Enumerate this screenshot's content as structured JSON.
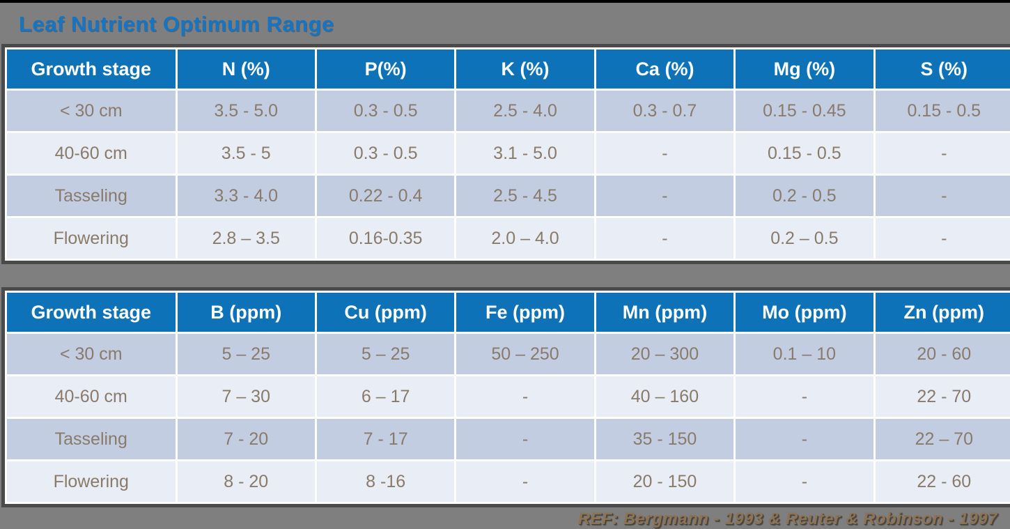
{
  "title": "Leaf Nutrient Optimum Range",
  "reference": "REF:  Bergmann - 1993 & Reuter & Robinson - 1997",
  "colors": {
    "background": "#7f7f7f",
    "title_text": "#1575c5",
    "header_bg": "#0d72b8",
    "header_text": "#ffffff",
    "row_dark": "#c2cde2",
    "row_light": "#e9edf5",
    "cell_text": "#8a7a6a",
    "table_outline": "#4a4a4a",
    "reference_text": "#8b7355"
  },
  "macro": {
    "headers": [
      "Growth stage",
      "N (%)",
      "P(%)",
      "K (%)",
      "Ca (%)",
      "Mg (%)",
      "S (%)"
    ],
    "rows": [
      [
        "< 30 cm",
        "3.5 - 5.0",
        "0.3 - 0.5",
        "2.5 - 4.0",
        "0.3 - 0.7",
        "0.15 - 0.45",
        "0.15 - 0.5"
      ],
      [
        "40-60 cm",
        "3.5 - 5",
        "0.3 - 0.5",
        "3.1 - 5.0",
        "-",
        "0.15 - 0.5",
        "-"
      ],
      [
        "Tasseling",
        "3.3 - 4.0",
        "0.22 - 0.4",
        "2.5 - 4.5",
        "-",
        "0.2 - 0.5",
        "-"
      ],
      [
        "Flowering",
        "2.8 – 3.5",
        "0.16-0.35",
        "2.0 – 4.0",
        "-",
        "0.2 – 0.5",
        "-"
      ]
    ]
  },
  "micro": {
    "headers": [
      "Growth stage",
      "B (ppm)",
      "Cu (ppm)",
      "Fe (ppm)",
      "Mn (ppm)",
      "Mo (ppm)",
      "Zn (ppm)"
    ],
    "rows": [
      [
        "< 30 cm",
        "5 – 25",
        "5 – 25",
        "50 – 250",
        "20 – 300",
        "0.1 – 10",
        "20 - 60"
      ],
      [
        "40-60 cm",
        "7 – 30",
        "6 – 17",
        "-",
        "40 – 160",
        "-",
        "22 - 70"
      ],
      [
        "Tasseling",
        "7 - 20",
        "7 - 17",
        "-",
        "35 - 150",
        "-",
        "22 – 70"
      ],
      [
        "Flowering",
        "8 - 20",
        "8 -16",
        "-",
        "20 - 150",
        "-",
        "22 - 60"
      ]
    ]
  }
}
